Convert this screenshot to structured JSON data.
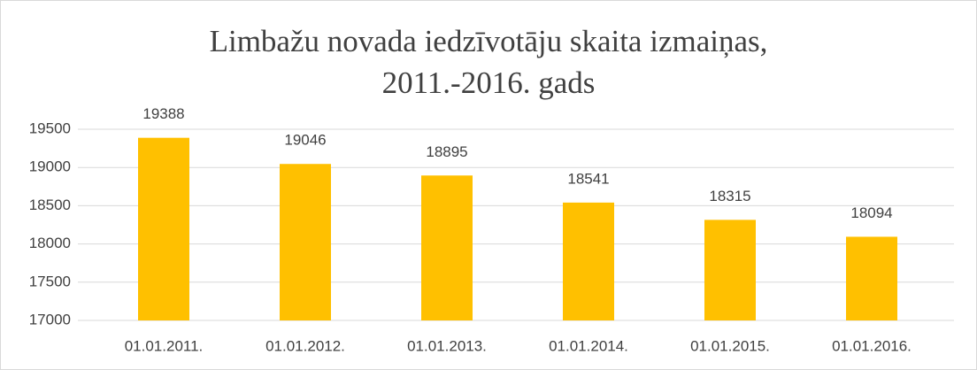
{
  "chart_data": {
    "type": "bar",
    "title": [
      "Limbažu novada iedzīvotāju skaita izmaiņas,",
      "2011.-2016. gads"
    ],
    "categories": [
      "01.01.2011.",
      "01.01.2012.",
      "01.01.2013.",
      "01.01.2014.",
      "01.01.2015.",
      "01.01.2016."
    ],
    "values": [
      19388,
      19046,
      18895,
      18541,
      18315,
      18094
    ],
    "color": "#ffc000",
    "ylim": [
      17000,
      19500
    ],
    "yticks": [
      17000,
      17500,
      18000,
      18500,
      19000,
      19500
    ],
    "grid": true
  }
}
